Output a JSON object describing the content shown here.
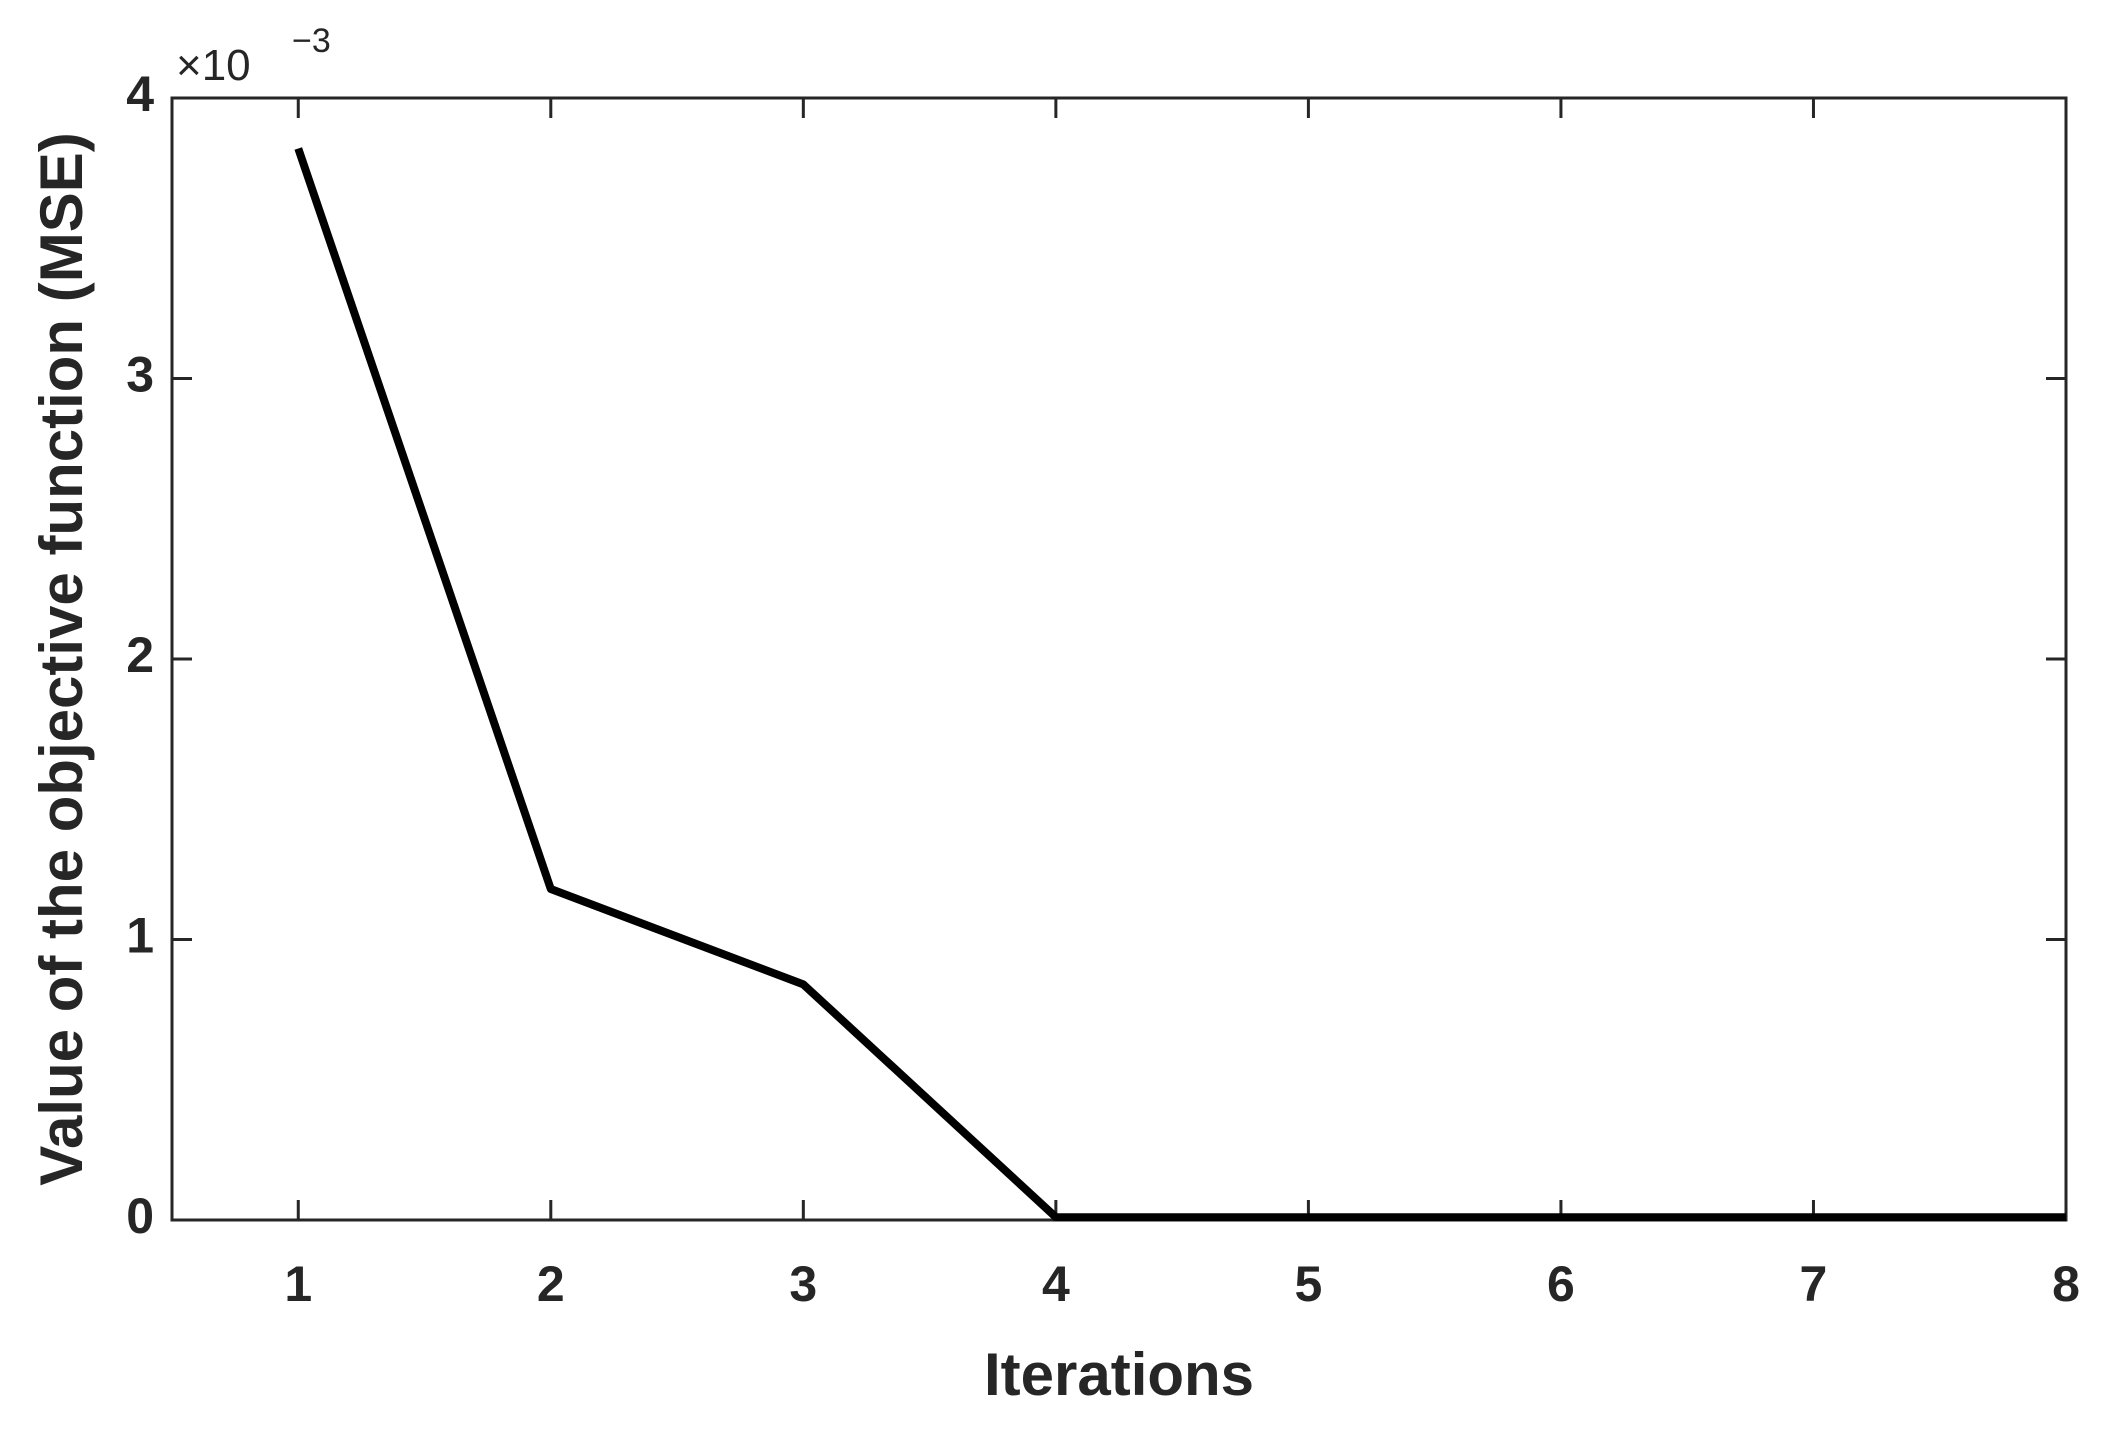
{
  "chart_data": {
    "type": "line",
    "x_label": "Iterations",
    "y_label": "Value of the objective function (MSE)",
    "y_multiplier": {
      "base": "×10",
      "exponent": "−3"
    },
    "x": [
      1,
      2,
      3,
      4,
      5,
      6,
      7,
      8
    ],
    "series": [
      {
        "color": "#000000",
        "values": [
          3.82,
          1.18,
          0.84,
          0.01,
          0.01,
          0.01,
          0.01,
          0.01
        ]
      }
    ],
    "xlim": [
      0.5,
      8
    ],
    "xticks": [
      1,
      2,
      3,
      4,
      5,
      6,
      7,
      8
    ],
    "ylim": [
      0,
      4
    ],
    "yticks": [
      0,
      1,
      2,
      3,
      4
    ],
    "grid": false
  }
}
